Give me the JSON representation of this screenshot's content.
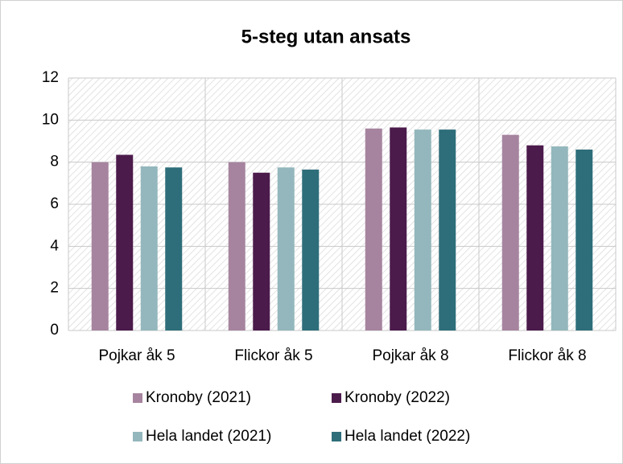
{
  "chart_data": {
    "type": "bar",
    "title": "5-steg utan ansats",
    "categories": [
      "Pojkar åk 5",
      "Flickor åk 5",
      "Pojkar åk 8",
      "Flickor åk 8"
    ],
    "series": [
      {
        "name": "Kronoby (2021)",
        "color": "#a6849f",
        "values": [
          8.0,
          8.0,
          9.6,
          9.3
        ]
      },
      {
        "name": "Kronoby (2022)",
        "color": "#4b1b4b",
        "values": [
          8.35,
          7.5,
          9.65,
          8.8
        ]
      },
      {
        "name": "Hela landet (2021)",
        "color": "#93b7bc",
        "values": [
          7.8,
          7.75,
          9.55,
          8.75
        ]
      },
      {
        "name": "Hela landet (2022)",
        "color": "#2e6e7a",
        "values": [
          7.75,
          7.65,
          9.55,
          8.6
        ]
      }
    ],
    "ylim": [
      0,
      12
    ],
    "yticks": [
      0,
      2,
      4,
      6,
      8,
      10,
      12
    ],
    "grid": true
  }
}
